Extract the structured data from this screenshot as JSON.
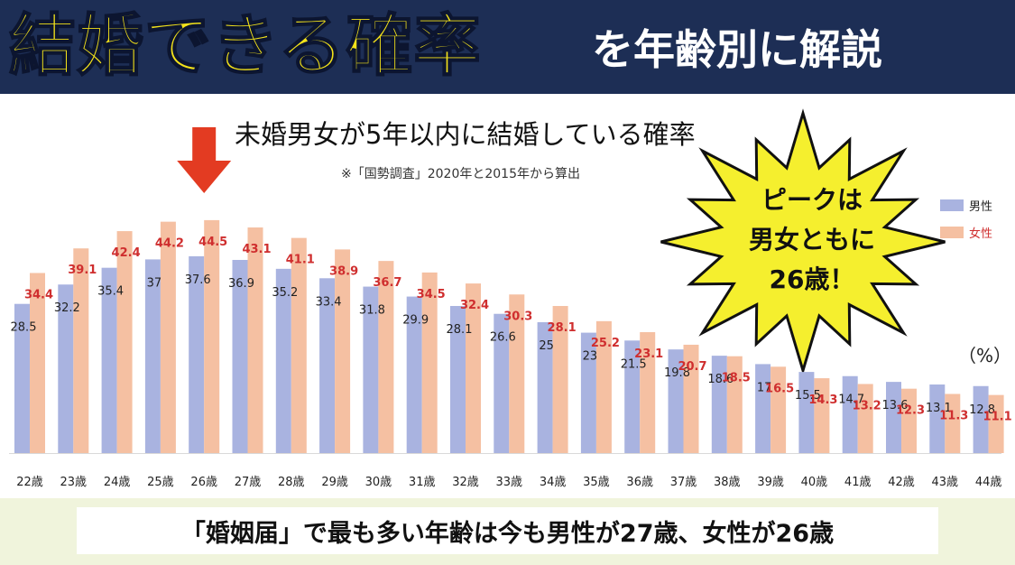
{
  "banner": {
    "title": "結婚できる確率",
    "subtitle": "を年齢別に解説"
  },
  "callout": {
    "line1": "ピークは",
    "line2": "男女ともに",
    "line3": "26歳！"
  },
  "footer": {
    "text": "「婚姻届」で最も多い年齢は今も男性が27歳、女性が26歳"
  },
  "colors": {
    "banner_bg": "#1d2e55",
    "banner_title": "#f4e31a",
    "male": "#a9b3e0",
    "female": "#f5c0a2",
    "female_label": "#cf2e2e",
    "arrow": "#e33b22",
    "burst": "#f5ef2e"
  },
  "chart_data": {
    "type": "bar",
    "title": "未婚男女が5年以内に結婚している確率",
    "subtitle": "※「国勢調査」2020年と2015年から算出",
    "unit": "（%）",
    "categories": [
      "22歳",
      "23歳",
      "24歳",
      "25歳",
      "26歳",
      "27歳",
      "28歳",
      "29歳",
      "30歳",
      "31歳",
      "32歳",
      "33歳",
      "34歳",
      "35歳",
      "36歳",
      "37歳",
      "38歳",
      "39歳",
      "40歳",
      "41歳",
      "42歳",
      "43歳",
      "44歳"
    ],
    "series": [
      {
        "name": "男性",
        "values": [
          28.5,
          32.2,
          35.4,
          37,
          37.6,
          36.9,
          35.2,
          33.4,
          31.8,
          29.9,
          28.1,
          26.6,
          25,
          23,
          21.5,
          19.8,
          18.6,
          17,
          15.5,
          14.7,
          13.6,
          13.1,
          12.8
        ]
      },
      {
        "name": "女性",
        "values": [
          34.4,
          39.1,
          42.4,
          44.2,
          44.5,
          43.1,
          41.1,
          38.9,
          36.7,
          34.5,
          32.4,
          30.3,
          28.1,
          25.2,
          23.1,
          20.7,
          18.5,
          16.5,
          14.3,
          13.2,
          12.3,
          11.3,
          11.1
        ]
      }
    ],
    "ylim": [
      0,
      50
    ],
    "legend_position": "right",
    "grid": false,
    "annotation": {
      "type": "arrow",
      "target": "26歳"
    }
  }
}
